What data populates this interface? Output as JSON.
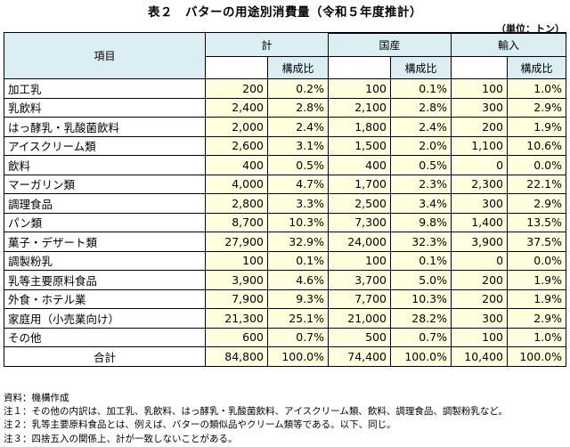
{
  "title": "表２　バターの用途別消費量（令和５年度推計）",
  "unit": "（単位：トン）",
  "headers": {
    "item": "項目",
    "total": "計",
    "domestic": "国産",
    "import": "輸入",
    "ratio": "構成比"
  },
  "rows": [
    {
      "label": "加工乳",
      "t": "200",
      "tr": "0.2%",
      "d": "100",
      "dr": "0.1%",
      "i": "100",
      "ir": "1.0%"
    },
    {
      "label": "乳飲料",
      "t": "2,400",
      "tr": "2.8%",
      "d": "2,100",
      "dr": "2.8%",
      "i": "300",
      "ir": "2.9%"
    },
    {
      "label": "はっ酵乳・乳酸菌飲料",
      "t": "2,000",
      "tr": "2.4%",
      "d": "1,800",
      "dr": "2.4%",
      "i": "200",
      "ir": "1.9%"
    },
    {
      "label": "アイスクリーム類",
      "t": "2,600",
      "tr": "3.1%",
      "d": "1,500",
      "dr": "2.0%",
      "i": "1,100",
      "ir": "10.6%"
    },
    {
      "label": "飲料",
      "t": "400",
      "tr": "0.5%",
      "d": "400",
      "dr": "0.5%",
      "i": "0",
      "ir": "0.0%"
    },
    {
      "label": "マーガリン類",
      "t": "4,000",
      "tr": "4.7%",
      "d": "1,700",
      "dr": "2.3%",
      "i": "2,300",
      "ir": "22.1%"
    },
    {
      "label": "調理食品",
      "t": "2,800",
      "tr": "3.3%",
      "d": "2,500",
      "dr": "3.4%",
      "i": "300",
      "ir": "2.9%"
    },
    {
      "label": "パン類",
      "t": "8,700",
      "tr": "10.3%",
      "d": "7,300",
      "dr": "9.8%",
      "i": "1,400",
      "ir": "13.5%"
    },
    {
      "label": "菓子・デザート類",
      "t": "27,900",
      "tr": "32.9%",
      "d": "24,000",
      "dr": "32.3%",
      "i": "3,900",
      "ir": "37.5%"
    },
    {
      "label": "調製粉乳",
      "t": "100",
      "tr": "0.1%",
      "d": "100",
      "dr": "0.1%",
      "i": "0",
      "ir": "0.0%"
    },
    {
      "label": "乳等主要原料食品",
      "t": "3,900",
      "tr": "4.6%",
      "d": "3,700",
      "dr": "5.0%",
      "i": "200",
      "ir": "1.9%"
    },
    {
      "label": "外食・ホテル業",
      "t": "7,900",
      "tr": "9.3%",
      "d": "7,700",
      "dr": "10.3%",
      "i": "200",
      "ir": "1.9%"
    },
    {
      "label": "家庭用（小売業向け）",
      "t": "21,300",
      "tr": "25.1%",
      "d": "21,000",
      "dr": "28.2%",
      "i": "300",
      "ir": "2.9%"
    },
    {
      "label": "その他",
      "t": "600",
      "tr": "0.7%",
      "d": "500",
      "dr": "0.7%",
      "i": "100",
      "ir": "1.0%"
    }
  ],
  "total": {
    "label": "合計",
    "t": "84,800",
    "tr": "100.0%",
    "d": "74,400",
    "dr": "100.0%",
    "i": "10,400",
    "ir": "100.0%"
  },
  "notes": [
    "資料：機構作成",
    "注１：その他の内訳は、加工乳、乳飲料、はっ酵乳・乳酸菌飲料、アイスクリーム類、飲料、調理食品、調製粉乳など。",
    "注２：乳等主要原料食品とは、例えば、バターの類似品やクリーム類等である。以下、同じ。",
    "注３：四捨五入の関係上、計が一致しないことがある。"
  ],
  "colors": {
    "header_bg": "#daeef3",
    "value_bg": "#ffffdd"
  }
}
